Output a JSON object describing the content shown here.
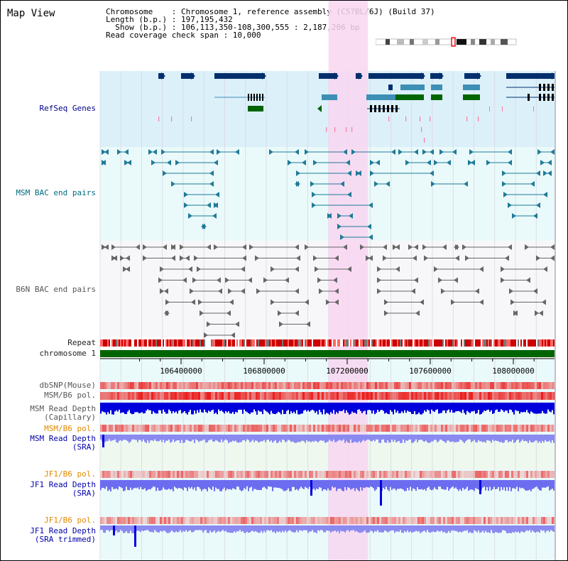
{
  "view_title": "Map View",
  "header": {
    "line1": "Chromosome    : Chromosome 1, reference assembly (C57BL/6J) (Build 37)",
    "line2": "Length (b.p.) : 197,195,432",
    "line3": "  Show (b.p.) : 106,113,350-108,300,555 : 2,187,206 bp",
    "line4": "Read coverage check span : 10,000"
  },
  "tracks": {
    "refseq": "RefSeq Genes",
    "msm_bac": "MSM BAC end pairs",
    "b6n_bac": "B6N BAC end pairs",
    "repeat": "Repeat",
    "chromosome": "chromosome 1",
    "dbsnp": "dbSNP(Mouse)",
    "msm_b6_pol": "MSM/B6 pol.",
    "msm_depth_cap_1": "MSM Read Depth",
    "msm_depth_cap_2": "(Capillary)",
    "msm_b6_pol_sra": "MSM/B6 pol.",
    "msm_depth_sra_1": "MSM Read Depth",
    "msm_depth_sra_2": "(SRA)",
    "jf1_b6_pol": "JF1/B6 pol.",
    "jf1_depth_sra_1": "JF1 Read Depth",
    "jf1_depth_sra_2": "(SRA)",
    "jf1_b6_pol_trim": "JF1/B6 pol.",
    "jf1_depth_trim_1": "JF1 Read Depth",
    "jf1_depth_trim_2": "(SRA trimmed)"
  },
  "axis": {
    "ticks": [
      {
        "value": 106400000,
        "label": "106400000"
      },
      {
        "value": 106800000,
        "label": "106800000"
      },
      {
        "value": 107200000,
        "label": "107200000"
      },
      {
        "value": 107600000,
        "label": "107600000"
      },
      {
        "value": 108000000,
        "label": "108000000"
      }
    ],
    "start": 106113350,
    "end": 108300555
  },
  "highlight": {
    "start": 107110000,
    "end": 107300000
  },
  "colors": {
    "refseq_bg": "#dcf0fa",
    "msm_bg": "#eafafa",
    "b6n_bg": "#f7f7fa",
    "highlight": "#f8d6f0",
    "gene_dark": "#002f6c",
    "gene_mid": "#3d8fb5",
    "gene_green": "#006400",
    "msm_pair": "#1f7a99",
    "b6n_pair": "#666666",
    "chromosome_bar": "#006400",
    "depth_blue": "#0000dd",
    "depth_light": "#8a8af0",
    "pol_red": "#e04040"
  }
}
